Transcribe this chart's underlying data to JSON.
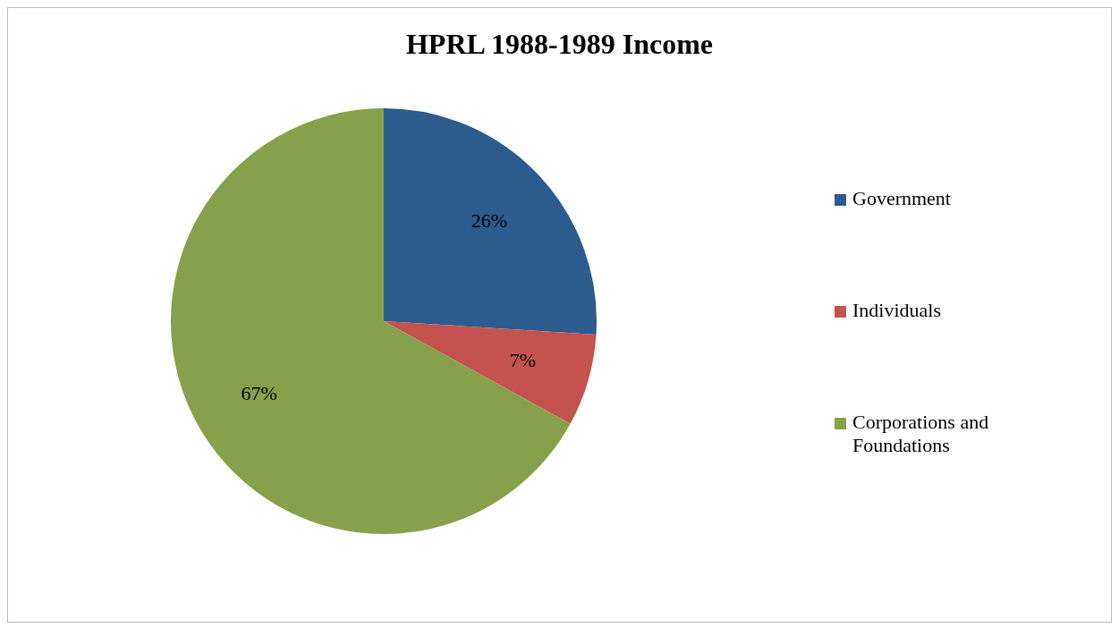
{
  "chart_data": {
    "type": "pie",
    "title": "HPRL 1988-1989 Income",
    "categories": [
      "Government",
      "Individuals",
      "Corporations and Foundations"
    ],
    "values": [
      26,
      7,
      67
    ],
    "colors": [
      "#2c5b8e",
      "#c4534f",
      "#87a04b"
    ],
    "value_labels": [
      "26%",
      "7%",
      "67%"
    ],
    "legend": "right"
  }
}
